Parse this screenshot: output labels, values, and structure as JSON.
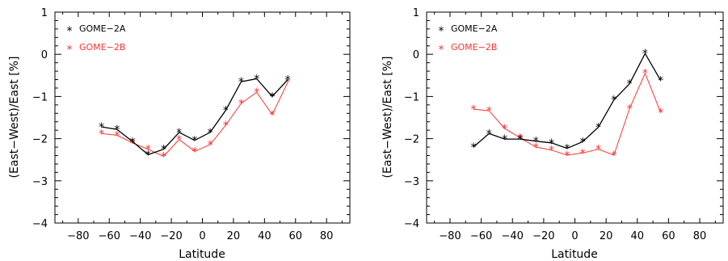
{
  "colors": {
    "gome2a": "#000000",
    "gome2b": "#ff3333",
    "axis": "#000000",
    "background": "#ffffff"
  },
  "chart_data": [
    {
      "type": "line",
      "xlabel": "Latitude",
      "ylabel": "(East−West)/East [%]",
      "xlim": [
        -95,
        95
      ],
      "ylim": [
        -4,
        1
      ],
      "xticks": [
        -80,
        -60,
        -40,
        -20,
        0,
        20,
        40,
        60,
        80
      ],
      "xtick_labels": [
        "−80",
        "−60",
        "−40",
        "−20",
        "0",
        "20",
        "40",
        "60",
        "80"
      ],
      "yticks": [
        -4,
        -3,
        -2,
        -1,
        0,
        1
      ],
      "ytick_labels": [
        "−4",
        "−3",
        "−2",
        "−1",
        "0",
        "1"
      ],
      "legend_location": "top-left",
      "marker": "asterisk",
      "series": [
        {
          "name": "GOME−2A",
          "x": [
            -65,
            -55,
            -45,
            -35,
            -25,
            -15,
            -5,
            5,
            15,
            25,
            35,
            45,
            55
          ],
          "values": [
            -1.72,
            -1.78,
            -2.07,
            -2.38,
            -2.25,
            -1.85,
            -2.04,
            -1.85,
            -1.33,
            -0.65,
            -0.58,
            -1.0,
            -0.6
          ]
        },
        {
          "name": "GOME−2B",
          "x": [
            -65,
            -55,
            -45,
            -35,
            -25,
            -15,
            -5,
            5,
            15,
            25,
            35,
            45,
            55
          ],
          "values": [
            -1.88,
            -1.92,
            -2.1,
            -2.25,
            -2.42,
            -2.02,
            -2.3,
            -2.14,
            -1.68,
            -1.16,
            -0.9,
            -1.43,
            -0.66
          ]
        }
      ]
    },
    {
      "type": "line",
      "xlabel": "Latitude",
      "ylabel": "(East−West)/East [%]",
      "xlim": [
        -95,
        95
      ],
      "ylim": [
        -4,
        1
      ],
      "xticks": [
        -80,
        -60,
        -40,
        -20,
        0,
        20,
        40,
        60,
        80
      ],
      "xtick_labels": [
        "−80",
        "−60",
        "−40",
        "−20",
        "0",
        "20",
        "40",
        "60",
        "80"
      ],
      "yticks": [
        -4,
        -3,
        -2,
        -1,
        0,
        1
      ],
      "ytick_labels": [
        "−4",
        "−3",
        "−2",
        "−1",
        "0",
        "1"
      ],
      "legend_location": "top-left",
      "marker": "asterisk",
      "series": [
        {
          "name": "GOME−2A",
          "x": [
            -65,
            -55,
            -45,
            -35,
            -25,
            -15,
            -5,
            5,
            15,
            25,
            35,
            45,
            55
          ],
          "values": [
            -2.2,
            -1.88,
            -2.01,
            -2.01,
            -2.06,
            -2.1,
            -2.23,
            -2.07,
            -1.73,
            -1.08,
            -0.7,
            0.02,
            -0.62
          ]
        },
        {
          "name": "GOME−2B",
          "x": [
            -65,
            -55,
            -45,
            -35,
            -25,
            -15,
            -5,
            5,
            15,
            25,
            35,
            45,
            55
          ],
          "values": [
            -1.3,
            -1.34,
            -1.76,
            -1.98,
            -2.2,
            -2.27,
            -2.39,
            -2.34,
            -2.25,
            -2.39,
            -1.29,
            -0.45,
            -1.38
          ]
        }
      ]
    }
  ]
}
